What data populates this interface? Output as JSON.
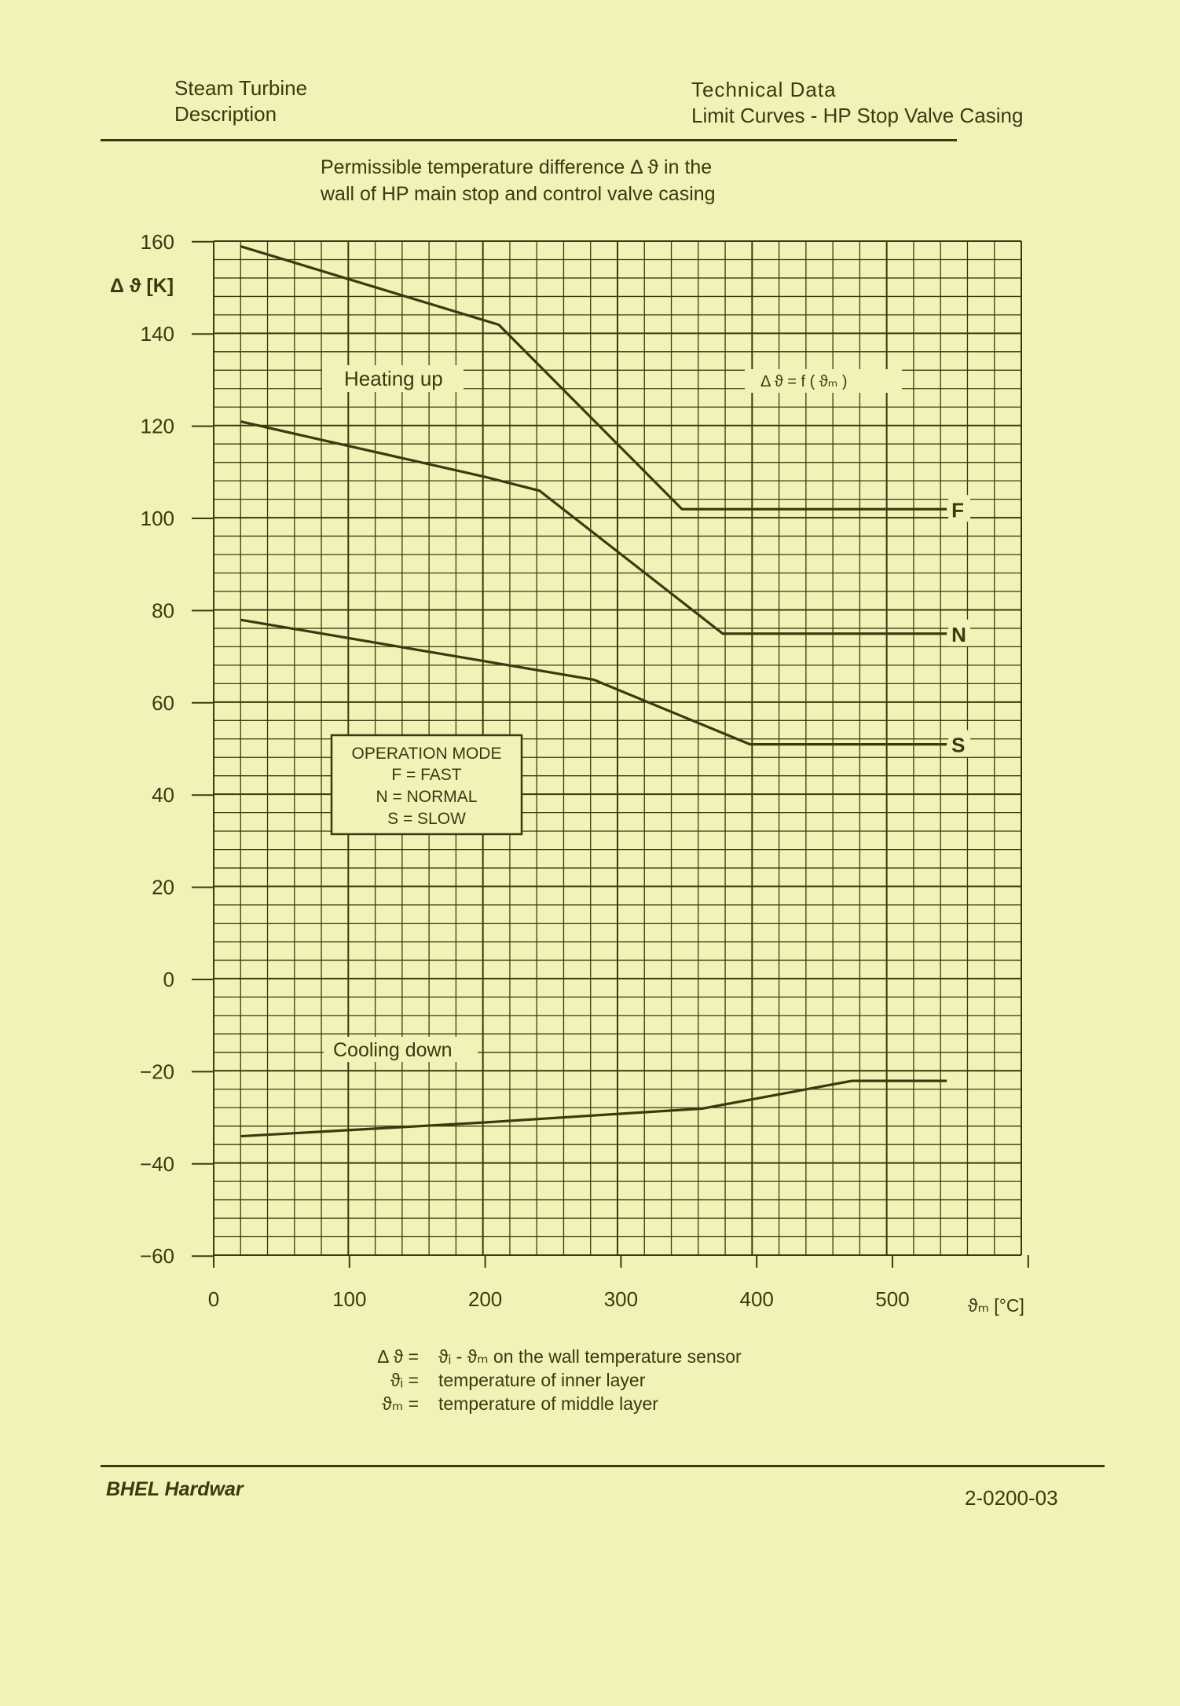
{
  "header": {
    "left_line1": "Steam Turbine",
    "left_line2": "Description",
    "right_line1": "Technical Data",
    "right_line2": "Limit Curves - HP Stop Valve Casing"
  },
  "footer": {
    "left": "BHEL Hardwar",
    "right": "2-0200-03"
  },
  "legend_definitions": [
    {
      "symbol": "Δ ϑ =",
      "text": "ϑᵢ - ϑₘ on the wall temperature sensor"
    },
    {
      "symbol": "ϑᵢ =",
      "text": "temperature of inner layer"
    },
    {
      "symbol": "ϑₘ =",
      "text": "temperature of middle layer"
    }
  ],
  "chart_data": {
    "type": "line",
    "title": "Permissible temperature difference Δ ϑ in the",
    "subtitle": "wall of HP main stop and control valve casing",
    "ylabel": "Δ ϑ [K]",
    "xlabel": "ϑₘ [°C]",
    "ylim": [
      -60,
      160
    ],
    "xlim": [
      0,
      600
    ],
    "yticks": [
      "160",
      "140",
      "120",
      "100",
      "80",
      "60",
      "40",
      "20",
      "0",
      "-20",
      "-40",
      "-60"
    ],
    "xticks": [
      "0",
      "100",
      "200",
      "300",
      "400",
      "500"
    ],
    "grid": true,
    "annotations": {
      "heating": "Heating up",
      "cooling": "Cooling down",
      "function": "Δ ϑ = f ( ϑₘ )"
    },
    "mode_box": {
      "title": "OPERATION MODE",
      "lines": [
        "F = FAST",
        "N = NORMAL",
        "S = SLOW"
      ]
    },
    "series": [
      {
        "name": "F",
        "x": [
          20,
          210,
          345,
          540
        ],
        "y": [
          159,
          142,
          102,
          102
        ]
      },
      {
        "name": "N",
        "x": [
          20,
          200,
          240,
          375,
          540
        ],
        "y": [
          121,
          109,
          106,
          75,
          75
        ]
      },
      {
        "name": "S",
        "x": [
          20,
          200,
          280,
          395,
          540
        ],
        "y": [
          78,
          69,
          65,
          51,
          51
        ]
      },
      {
        "name": "",
        "x": [
          20,
          200,
          360,
          470,
          540
        ],
        "y": [
          -34,
          -31,
          -28,
          -22,
          -22
        ]
      }
    ],
    "colors": {
      "ink": "#3a3a10",
      "paper": "#f1f1b8"
    }
  }
}
